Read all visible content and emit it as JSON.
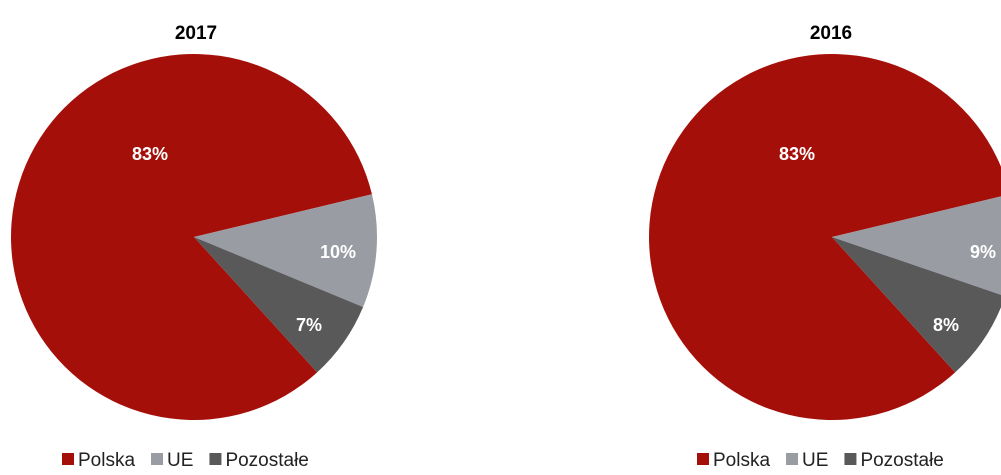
{
  "chart_data": [
    {
      "type": "pie",
      "title": "2017",
      "categories": [
        "Polska",
        "UE",
        "Pozostałe"
      ],
      "values": [
        83,
        10,
        7
      ],
      "labels": [
        "83%",
        "10%",
        "7%"
      ],
      "colors": [
        "#a50f0a",
        "#999ca3",
        "#595959"
      ],
      "legend_position": "bottom"
    },
    {
      "type": "pie",
      "title": "2016",
      "categories": [
        "Polska",
        "UE",
        "Pozostałe"
      ],
      "values": [
        83,
        9,
        8
      ],
      "labels": [
        "83%",
        "9%",
        "8%"
      ],
      "colors": [
        "#a50f0a",
        "#999ca3",
        "#595959"
      ],
      "legend_position": "bottom"
    }
  ]
}
